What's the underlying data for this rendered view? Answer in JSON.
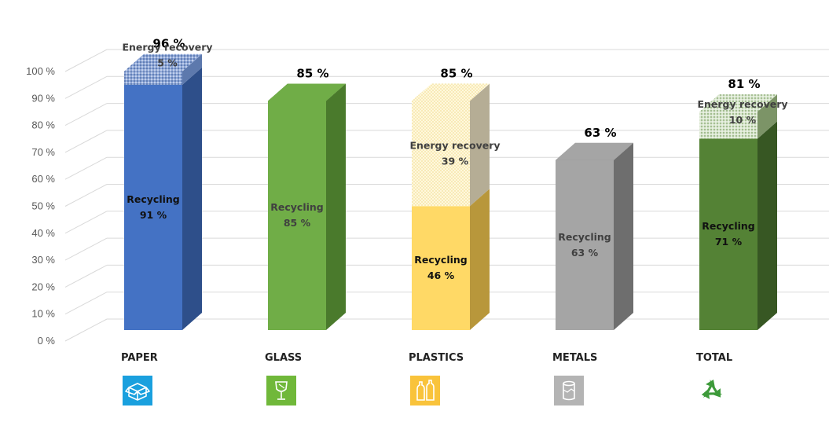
{
  "chart_data": {
    "type": "bar",
    "stacked": true,
    "style": "3d-column",
    "categories": [
      "PAPER",
      "GLASS",
      "PLASTICS",
      "METALS",
      "TOTAL"
    ],
    "ylim": [
      0,
      100
    ],
    "yticks": [
      "0 %",
      "10 %",
      "20 %",
      "30 %",
      "40 %",
      "50 %",
      "60 %",
      "70 %",
      "80 %",
      "90 %",
      "100 %"
    ],
    "grid": true,
    "series": [
      {
        "name": "Recycling",
        "values": [
          91,
          85,
          46,
          63,
          71
        ]
      },
      {
        "name": "Energy recovery",
        "values": [
          5,
          0,
          39,
          0,
          10
        ]
      }
    ],
    "totals": [
      96,
      85,
      85,
      63,
      81
    ],
    "total_labels": [
      "96 %",
      "85 %",
      "85 %",
      "63 %",
      "81 %"
    ],
    "segment_labels": [
      {
        "recycling": "91 %",
        "energy": "5 %"
      },
      {
        "recycling": "85 %",
        "energy": ""
      },
      {
        "recycling": "46 %",
        "energy": "39 %"
      },
      {
        "recycling": "63 %",
        "energy": ""
      },
      {
        "recycling": "71 %",
        "energy": "10 %"
      }
    ],
    "colors": {
      "PAPER": {
        "front": "#4472c4",
        "side": "#2e4f8a",
        "energy_front": "#8ea7d8",
        "energy_side": "#5d79ad"
      },
      "GLASS": {
        "front": "#70ad47",
        "side": "#4a7a2c"
      },
      "PLASTICS": {
        "front": "#ffd966",
        "side": "#b8973b",
        "energy_front": "#fff3cc",
        "energy_side": "#b5ad95"
      },
      "METALS": {
        "front": "#a5a5a5",
        "side": "#6e6e6e"
      },
      "TOTAL": {
        "front": "#548235",
        "side": "#375723",
        "energy_front": "#c5d9b5",
        "energy_side": "#7c9467"
      }
    }
  },
  "icons": [
    {
      "category": "PAPER",
      "name": "box-icon",
      "color": "#1aa0de"
    },
    {
      "category": "GLASS",
      "name": "wine-glass-icon",
      "color": "#70b83a"
    },
    {
      "category": "PLASTICS",
      "name": "bottles-icon",
      "color": "#f9c33b"
    },
    {
      "category": "METALS",
      "name": "can-icon",
      "color": "#b4b4b4"
    },
    {
      "category": "TOTAL",
      "name": "recycle-icon",
      "color": "#3d9a3a"
    }
  ]
}
